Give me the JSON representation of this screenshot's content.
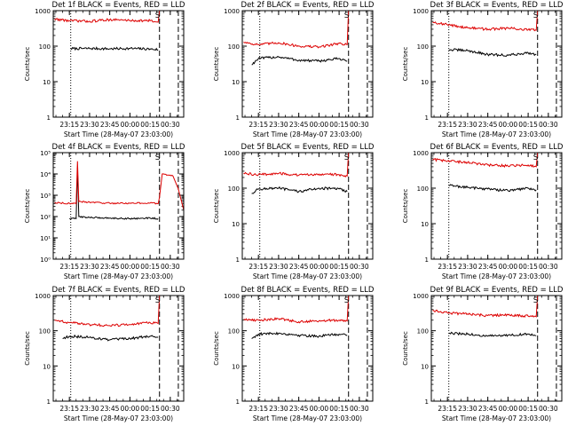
{
  "colors": {
    "events": "#000000",
    "lld": "#dd0000",
    "axis": "#000000",
    "background": "#ffffff"
  },
  "chart_data": [
    {
      "type": "line",
      "title": "Det 1f BLACK = Events, RED = LLD",
      "ylabel": "Counts/sec",
      "xlabel": "Start Time (28-May-07 23:03:00)",
      "yscale": "log",
      "ylim": [
        1,
        1000
      ],
      "yticks": [
        "1",
        "10",
        "100",
        "1000"
      ],
      "xlim": [
        "23:03",
        "00:40"
      ],
      "xticks": [
        "23:15",
        "23:30",
        "23:45",
        "00:00",
        "00:15",
        "00:30"
      ],
      "vlines_dotted": [
        "23:16"
      ],
      "vlines_dashed": [
        "00:22",
        "00:36"
      ],
      "marker": "S",
      "series": [
        {
          "key": "events",
          "x": [
            "23:16",
            "23:30",
            "23:45",
            "00:00",
            "00:15",
            "00:21"
          ],
          "values": [
            85,
            86,
            84,
            86,
            83,
            80
          ]
        },
        {
          "key": "lld",
          "x": [
            "23:04",
            "23:15",
            "23:30",
            "23:45",
            "00:00",
            "00:15",
            "00:21",
            "00:22"
          ],
          "values": [
            580,
            520,
            500,
            560,
            530,
            520,
            470,
            1000
          ]
        }
      ]
    },
    {
      "type": "line",
      "title": "Det 2f BLACK = Events, RED = LLD",
      "ylabel": "Counts/sec",
      "xlabel": "Start Time (28-May-07 23:03:00)",
      "yscale": "log",
      "ylim": [
        1,
        1000
      ],
      "yticks": [
        "1",
        "10",
        "100",
        "1000"
      ],
      "xlim": [
        "23:03",
        "00:40"
      ],
      "xticks": [
        "23:15",
        "23:30",
        "23:45",
        "00:00",
        "00:15",
        "00:30"
      ],
      "vlines_dotted": [
        "23:16"
      ],
      "vlines_dashed": [
        "00:22",
        "00:36"
      ],
      "marker": "S",
      "series": [
        {
          "key": "events",
          "x": [
            "23:10",
            "23:15",
            "23:30",
            "23:45",
            "00:00",
            "00:15",
            "00:21"
          ],
          "values": [
            30,
            45,
            50,
            40,
            38,
            45,
            38
          ]
        },
        {
          "key": "lld",
          "x": [
            "23:04",
            "23:15",
            "23:30",
            "23:45",
            "00:00",
            "00:15",
            "00:21",
            "00:22"
          ],
          "values": [
            130,
            110,
            125,
            100,
            95,
            120,
            110,
            1000
          ]
        }
      ]
    },
    {
      "type": "line",
      "title": "Det 3f BLACK = Events, RED = LLD",
      "ylabel": "Counts/sec",
      "xlabel": "Start Time (28-May-07 23:03:00)",
      "yscale": "log",
      "ylim": [
        1,
        1000
      ],
      "yticks": [
        "1",
        "10",
        "100",
        "1000"
      ],
      "xlim": [
        "23:03",
        "00:40"
      ],
      "xticks": [
        "23:15",
        "23:30",
        "23:45",
        "00:00",
        "00:15",
        "00:30"
      ],
      "vlines_dotted": [
        "23:16"
      ],
      "vlines_dashed": [
        "00:22",
        "00:36"
      ],
      "marker": "S",
      "series": [
        {
          "key": "events",
          "x": [
            "23:16",
            "23:30",
            "23:45",
            "00:00",
            "00:15",
            "00:21"
          ],
          "values": [
            80,
            75,
            58,
            55,
            65,
            58
          ]
        },
        {
          "key": "lld",
          "x": [
            "23:04",
            "23:15",
            "23:30",
            "23:45",
            "00:00",
            "00:15",
            "00:21",
            "00:22"
          ],
          "values": [
            480,
            400,
            330,
            300,
            320,
            290,
            280,
            1000
          ]
        }
      ]
    },
    {
      "type": "line",
      "title": "Det 4f BLACK = Events, RED = LLD",
      "ylabel": "Counts/sec",
      "xlabel": "Start Time (28-May-07 23:03:00)",
      "yscale": "log",
      "ylim": [
        1,
        100000
      ],
      "yticks": [
        "10⁰",
        "10¹",
        "10²",
        "10³",
        "10⁴",
        "10⁵"
      ],
      "xlim": [
        "23:03",
        "00:40"
      ],
      "xticks": [
        "23:15",
        "23:30",
        "23:45",
        "00:00",
        "00:15",
        "00:30"
      ],
      "vlines_dotted": [
        "23:16"
      ],
      "vlines_dashed": [
        "00:22",
        "00:36"
      ],
      "marker": "S",
      "series": [
        {
          "key": "events",
          "x": [
            "23:15",
            "23:20",
            "23:21",
            "23:22",
            "23:30",
            "23:45",
            "00:00",
            "00:15",
            "00:21"
          ],
          "values": [
            80,
            80,
            20000,
            100,
            90,
            85,
            80,
            85,
            80
          ]
        },
        {
          "key": "lld",
          "x": [
            "23:04",
            "23:15",
            "23:20",
            "23:21",
            "23:22",
            "23:45",
            "00:15",
            "00:21",
            "00:22",
            "00:24",
            "00:32",
            "00:36",
            "00:40"
          ],
          "values": [
            450,
            420,
            400,
            40000,
            500,
            420,
            430,
            400,
            800,
            10000,
            8000,
            2000,
            200
          ]
        }
      ]
    },
    {
      "type": "line",
      "title": "Det 5f BLACK = Events, RED = LLD",
      "ylabel": "Counts/sec",
      "xlabel": "Start Time (28-May-07 23:03:00)",
      "yscale": "log",
      "ylim": [
        1,
        1000
      ],
      "yticks": [
        "1",
        "10",
        "100",
        "1000"
      ],
      "xlim": [
        "23:03",
        "00:40"
      ],
      "xticks": [
        "23:15",
        "23:30",
        "23:45",
        "00:00",
        "00:15",
        "00:30"
      ],
      "vlines_dotted": [
        "23:16"
      ],
      "vlines_dashed": [
        "00:22",
        "00:36"
      ],
      "marker": "S",
      "series": [
        {
          "key": "events",
          "x": [
            "23:10",
            "23:15",
            "23:30",
            "23:45",
            "00:00",
            "00:15",
            "00:21"
          ],
          "values": [
            70,
            95,
            100,
            80,
            100,
            95,
            80
          ]
        },
        {
          "key": "lld",
          "x": [
            "23:04",
            "23:15",
            "23:30",
            "23:45",
            "00:00",
            "00:15",
            "00:21",
            "00:22"
          ],
          "values": [
            260,
            240,
            260,
            230,
            250,
            240,
            220,
            1000
          ]
        }
      ]
    },
    {
      "type": "line",
      "title": "Det 6f BLACK = Events, RED = LLD",
      "ylabel": "Counts/sec",
      "xlabel": "Start Time (28-May-07 23:03:00)",
      "yscale": "log",
      "ylim": [
        1,
        1000
      ],
      "yticks": [
        "1",
        "10",
        "100",
        "1000"
      ],
      "xlim": [
        "23:03",
        "00:40"
      ],
      "xticks": [
        "23:15",
        "23:30",
        "23:45",
        "00:00",
        "00:15",
        "00:30"
      ],
      "vlines_dotted": [
        "23:16"
      ],
      "vlines_dashed": [
        "00:22",
        "00:36"
      ],
      "marker": "S",
      "series": [
        {
          "key": "events",
          "x": [
            "23:16",
            "23:30",
            "23:45",
            "00:00",
            "00:15",
            "00:21"
          ],
          "values": [
            120,
            105,
            95,
            85,
            100,
            90
          ]
        },
        {
          "key": "lld",
          "x": [
            "23:04",
            "23:15",
            "23:30",
            "23:45",
            "00:00",
            "00:15",
            "00:21",
            "00:22"
          ],
          "values": [
            650,
            580,
            530,
            450,
            420,
            450,
            400,
            1000
          ]
        }
      ]
    },
    {
      "type": "line",
      "title": "Det 7f BLACK = Events, RED = LLD",
      "ylabel": "Counts/sec",
      "xlabel": "Start Time (28-May-07 23:03:00)",
      "yscale": "log",
      "ylim": [
        1,
        1000
      ],
      "yticks": [
        "1",
        "10",
        "100",
        "1000"
      ],
      "xlim": [
        "23:03",
        "00:40"
      ],
      "xticks": [
        "23:15",
        "23:30",
        "23:45",
        "00:00",
        "00:15",
        "00:30"
      ],
      "vlines_dotted": [
        "23:16"
      ],
      "vlines_dashed": [
        "00:22",
        "00:36"
      ],
      "marker": "S",
      "series": [
        {
          "key": "events",
          "x": [
            "23:10",
            "23:15",
            "23:30",
            "23:45",
            "00:00",
            "00:15",
            "00:21"
          ],
          "values": [
            60,
            70,
            65,
            55,
            60,
            70,
            65
          ]
        },
        {
          "key": "lld",
          "x": [
            "23:04",
            "23:15",
            "23:30",
            "23:45",
            "00:00",
            "00:15",
            "00:21",
            "00:22"
          ],
          "values": [
            200,
            170,
            150,
            140,
            150,
            170,
            160,
            1000
          ]
        }
      ]
    },
    {
      "type": "line",
      "title": "Det 8f BLACK = Events, RED = LLD",
      "ylabel": "Counts/sec",
      "xlabel": "Start Time (28-May-07 23:03:00)",
      "yscale": "log",
      "ylim": [
        1,
        1000
      ],
      "yticks": [
        "1",
        "10",
        "100",
        "1000"
      ],
      "xlim": [
        "23:03",
        "00:40"
      ],
      "xticks": [
        "23:15",
        "23:30",
        "23:45",
        "00:00",
        "00:15",
        "00:30"
      ],
      "vlines_dotted": [
        "23:16"
      ],
      "vlines_dashed": [
        "00:22",
        "00:36"
      ],
      "marker": "S",
      "series": [
        {
          "key": "events",
          "x": [
            "23:10",
            "23:15",
            "23:30",
            "23:45",
            "00:00",
            "00:15",
            "00:21"
          ],
          "values": [
            60,
            80,
            85,
            75,
            70,
            80,
            75
          ]
        },
        {
          "key": "lld",
          "x": [
            "23:04",
            "23:15",
            "23:30",
            "23:45",
            "00:00",
            "00:15",
            "00:21",
            "00:22"
          ],
          "values": [
            210,
            200,
            220,
            180,
            190,
            200,
            190,
            1000
          ]
        }
      ]
    },
    {
      "type": "line",
      "title": "Det 9f BLACK = Events, RED = LLD",
      "ylabel": "Counts/sec",
      "xlabel": "Start Time (28-May-07 23:03:00)",
      "yscale": "log",
      "ylim": [
        1,
        1000
      ],
      "yticks": [
        "1",
        "10",
        "100",
        "1000"
      ],
      "xlim": [
        "23:03",
        "00:40"
      ],
      "xticks": [
        "23:15",
        "23:30",
        "23:45",
        "00:00",
        "00:15",
        "00:30"
      ],
      "vlines_dotted": [
        "23:16"
      ],
      "vlines_dashed": [
        "00:22",
        "00:36"
      ],
      "marker": "S",
      "series": [
        {
          "key": "events",
          "x": [
            "23:16",
            "23:30",
            "23:45",
            "00:00",
            "00:15",
            "00:21"
          ],
          "values": [
            85,
            80,
            70,
            75,
            80,
            72
          ]
        },
        {
          "key": "lld",
          "x": [
            "23:04",
            "23:15",
            "23:30",
            "23:45",
            "00:00",
            "00:15",
            "00:21",
            "00:22"
          ],
          "values": [
            380,
            320,
            300,
            270,
            280,
            260,
            250,
            1000
          ]
        }
      ]
    }
  ]
}
